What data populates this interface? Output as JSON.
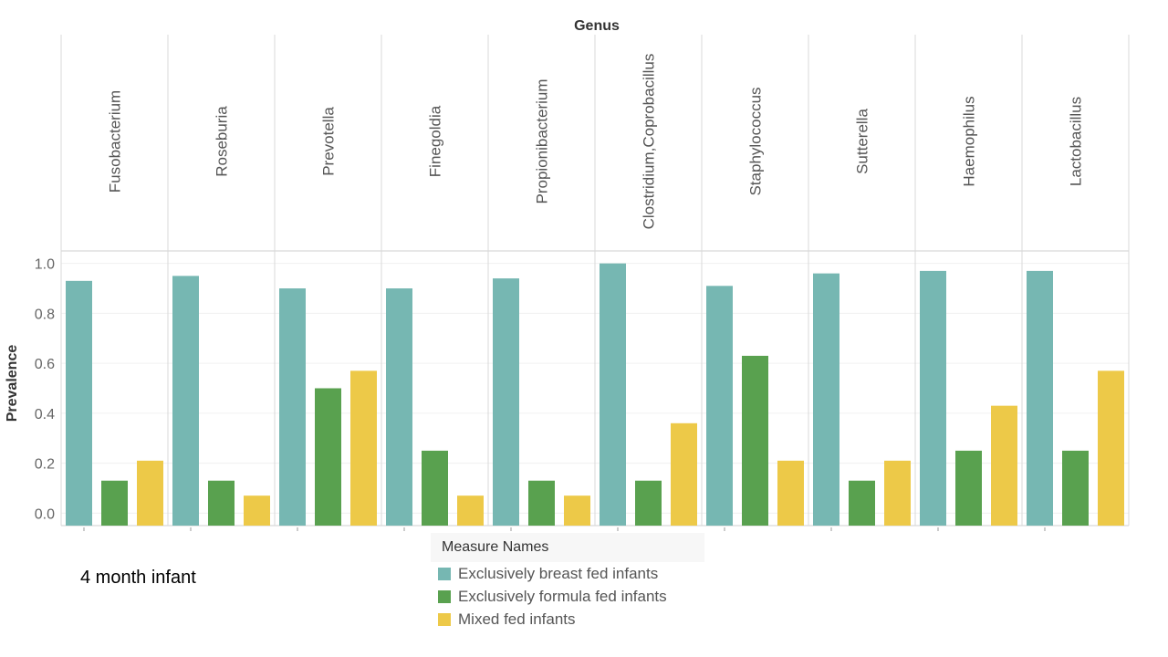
{
  "header": {
    "title": "Genus"
  },
  "caption": "4 month infant",
  "legend": {
    "title": "Measure Names",
    "items": [
      {
        "label": "Exclusively breast fed infants",
        "color": "#76b7b2"
      },
      {
        "label": "Exclusively formula fed infants",
        "color": "#59a14f"
      },
      {
        "label": "Mixed fed infants",
        "color": "#edc948"
      }
    ]
  },
  "chart_data": {
    "type": "bar",
    "ylabel": "Prevalence",
    "xlabel": "",
    "ylim": [
      -0.05,
      1.05
    ],
    "yticks": [
      0.0,
      0.2,
      0.4,
      0.6,
      0.8,
      1.0
    ],
    "ytick_labels": [
      "0.0",
      "0.2",
      "0.4",
      "0.6",
      "0.8",
      "1.0"
    ],
    "categories": [
      "Fusobacterium",
      "Roseburia",
      "Prevotella",
      "Finegoldia",
      "Propionibacterium",
      "Clostridium,Coprobacillus",
      "Staphylococcus",
      "Sutterella",
      "Haemophilus",
      "Lactobacillus"
    ],
    "series": [
      {
        "name": "Exclusively breast fed infants",
        "color": "#76b7b2",
        "values": [
          0.93,
          0.95,
          0.9,
          0.9,
          0.94,
          1.0,
          0.91,
          0.96,
          0.97,
          0.97
        ]
      },
      {
        "name": "Exclusively formula fed infants",
        "color": "#59a14f",
        "values": [
          0.13,
          0.13,
          0.5,
          0.25,
          0.13,
          0.13,
          0.63,
          0.13,
          0.25,
          0.25
        ]
      },
      {
        "name": "Mixed fed infants",
        "color": "#edc948",
        "values": [
          0.21,
          0.07,
          0.57,
          0.07,
          0.07,
          0.36,
          0.21,
          0.21,
          0.43,
          0.57
        ]
      }
    ],
    "grid": true,
    "legend_position": "bottom"
  }
}
